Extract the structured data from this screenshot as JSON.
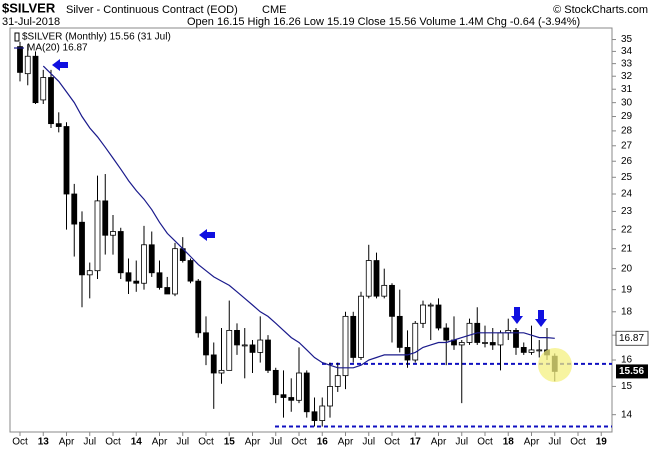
{
  "header": {
    "symbol": "$SILVER",
    "title": "Silver - Continuous Contract (EOD)",
    "exchange": "CME",
    "date": "31-Jul-2018",
    "stats": "Open 16.15  High 16.26  Low 15.19  Close 15.56  Volume 1.4M  Chg -0.64 (-3.94%)",
    "source": "© StockCharts.com"
  },
  "chart_data": {
    "type": "candlestick",
    "price_legend": "$SILVER (Monthly) 15.56 (31 Jul)",
    "categories": [
      "Oct",
      null,
      null,
      "13",
      null,
      null,
      "Apr",
      null,
      null,
      "Jul",
      null,
      null,
      "Oct",
      null,
      null,
      "14",
      null,
      null,
      "Apr",
      null,
      null,
      "Jul",
      null,
      null,
      "Oct",
      null,
      null,
      "15",
      null,
      null,
      "Apr",
      null,
      null,
      "Jul",
      null,
      null,
      "Oct",
      null,
      null,
      "16",
      null,
      null,
      "Apr",
      null,
      null,
      "Jul",
      null,
      null,
      "Oct",
      null,
      null,
      "17",
      null,
      null,
      "Apr",
      null,
      null,
      "Jul",
      null,
      null,
      "Oct",
      null,
      null,
      "18",
      null,
      null,
      "Apr",
      null,
      null,
      "Jul",
      null,
      null,
      "Oct",
      null,
      null,
      "19"
    ],
    "open": [
      34.4,
      32.2,
      33.6,
      30.2,
      31.9,
      28.5,
      28.3,
      24.0,
      22.4,
      19.7,
      19.9,
      23.6,
      21.7,
      21.9,
      19.8,
      19.4,
      19.3,
      21.2,
      19.8,
      19.1,
      18.8,
      21.0,
      20.4,
      19.4,
      17.1,
      16.2,
      15.5,
      15.6,
      17.2,
      16.6,
      16.6,
      16.3,
      16.8,
      15.6,
      14.7,
      14.6,
      14.5,
      15.5,
      14.1,
      13.8,
      14.3,
      15.0,
      15.4,
      17.8,
      16.1,
      18.7,
      20.4,
      18.7,
      19.2,
      17.8,
      16.5,
      16.0,
      17.5,
      18.3,
      18.3,
      17.3,
      16.8,
      16.6,
      16.7,
      17.5,
      16.7,
      16.7,
      16.6,
      17.1,
      17.2,
      16.5,
      16.3,
      16.4,
      16.4,
      16.15,
      null,
      null,
      null,
      null,
      null,
      null
    ],
    "high": [
      34.8,
      34.6,
      34.0,
      32.5,
      32.5,
      29.3,
      28.6,
      24.6,
      23.0,
      20.3,
      25.1,
      25.2,
      22.8,
      22.1,
      20.5,
      20.4,
      22.2,
      21.9,
      20.4,
      19.6,
      21.3,
      21.6,
      20.5,
      19.5,
      17.8,
      16.7,
      17.3,
      18.5,
      17.5,
      17.3,
      16.8,
      17.8,
      17.0,
      15.7,
      15.6,
      15.3,
      16.5,
      15.6,
      14.6,
      14.6,
      15.9,
      15.9,
      18.0,
      18.0,
      18.9,
      21.2,
      20.8,
      20.0,
      19.3,
      19.0,
      17.2,
      17.6,
      18.5,
      18.4,
      18.6,
      17.5,
      17.8,
      16.8,
      17.7,
      18.2,
      17.4,
      17.3,
      17.2,
      17.7,
      17.3,
      16.7,
      17.4,
      16.8,
      17.3,
      16.26,
      null,
      null,
      null,
      null,
      null,
      null
    ],
    "low": [
      31.6,
      31.3,
      29.9,
      29.9,
      28.2,
      27.9,
      22.0,
      20.6,
      18.2,
      18.6,
      19.5,
      20.7,
      20.7,
      19.5,
      18.8,
      18.9,
      19.0,
      19.6,
      19.0,
      18.8,
      18.7,
      20.3,
      19.3,
      16.9,
      15.8,
      14.2,
      15.1,
      15.6,
      16.2,
      15.3,
      15.5,
      15.9,
      15.5,
      14.4,
      13.9,
      14.1,
      14.4,
      13.9,
      13.6,
      13.6,
      13.9,
      14.8,
      14.9,
      15.9,
      16.0,
      18.6,
      18.6,
      18.6,
      16.7,
      16.3,
      15.7,
      15.9,
      17.3,
      16.8,
      17.2,
      15.8,
      16.4,
      14.4,
      16.6,
      16.6,
      16.5,
      16.4,
      15.6,
      16.8,
      16.2,
      16.2,
      16.2,
      16.1,
      16.0,
      15.19,
      null,
      null,
      null,
      null,
      null,
      null
    ],
    "close": [
      32.3,
      33.6,
      30.0,
      31.9,
      28.5,
      28.3,
      24.0,
      22.3,
      19.7,
      19.9,
      23.6,
      21.7,
      21.9,
      19.8,
      19.4,
      19.3,
      21.2,
      19.8,
      19.1,
      18.8,
      21.0,
      20.4,
      19.4,
      17.1,
      16.2,
      15.5,
      15.6,
      17.2,
      16.6,
      16.6,
      16.3,
      16.8,
      15.6,
      14.7,
      14.6,
      14.5,
      15.5,
      14.1,
      13.8,
      14.3,
      15.0,
      15.4,
      17.8,
      16.1,
      18.7,
      20.4,
      18.7,
      19.2,
      17.8,
      16.5,
      16.0,
      17.5,
      18.3,
      18.3,
      17.3,
      16.8,
      16.6,
      16.7,
      17.5,
      16.7,
      16.7,
      16.6,
      17.1,
      17.2,
      16.5,
      16.3,
      16.4,
      16.4,
      16.2,
      15.56,
      null,
      null,
      null,
      null,
      null,
      null
    ],
    "ma": {
      "name": "MA(20) 16.87",
      "color": "#1a1a8c",
      "values": [
        null,
        null,
        null,
        32.8,
        32.2,
        31.6,
        30.8,
        30.0,
        29.0,
        28.2,
        27.6,
        26.9,
        26.2,
        25.5,
        24.8,
        24.2,
        23.7,
        23.1,
        22.4,
        21.8,
        21.4,
        21.0,
        20.6,
        20.2,
        19.9,
        19.6,
        19.4,
        19.2,
        18.9,
        18.6,
        18.3,
        18.0,
        17.8,
        17.5,
        17.2,
        16.9,
        16.7,
        16.4,
        16.1,
        15.9,
        15.8,
        15.7,
        15.7,
        15.7,
        15.8,
        16.0,
        16.1,
        16.2,
        16.2,
        16.2,
        16.2,
        16.3,
        16.5,
        16.6,
        16.7,
        16.7,
        16.8,
        16.9,
        17.0,
        17.1,
        17.1,
        17.1,
        17.1,
        17.1,
        17.1,
        17.1,
        17.0,
        16.9,
        16.9,
        16.87,
        null,
        null,
        null,
        null,
        null,
        null
      ]
    },
    "reference_lines": [
      15.85,
      13.6
    ],
    "ylim": [
      13.42,
      36
    ],
    "log_scale": true,
    "yticks": [
      14,
      15,
      16,
      17,
      18,
      19,
      20,
      21,
      22,
      23,
      24,
      25,
      26,
      27,
      28,
      29,
      30,
      31,
      32,
      33,
      34,
      35
    ],
    "up_color": "#ffffff",
    "down_color": "#000000"
  }
}
